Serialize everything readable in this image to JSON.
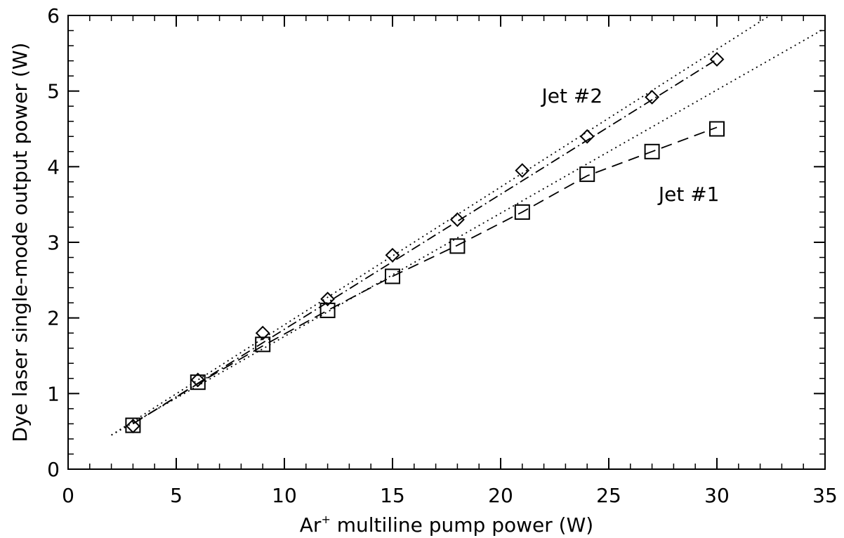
{
  "chart_data": {
    "type": "scatter",
    "xlabel_prefix": "Ar",
    "xlabel_sup": "+",
    "xlabel_rest": " multiline pump power (W)",
    "ylabel": "Dye laser single-mode output power (W)",
    "xlim": [
      0,
      35
    ],
    "ylim": [
      0,
      6
    ],
    "xticks": [
      0,
      5,
      10,
      15,
      20,
      25,
      30,
      35
    ],
    "yticks": [
      0,
      1,
      2,
      3,
      4,
      5,
      6
    ],
    "x_minor_step": 1,
    "y_minor_step": 0.2,
    "grid": false,
    "annotations": [
      {
        "text": "Jet #2",
        "x": 21.9,
        "y": 4.85
      },
      {
        "text": "Jet #1",
        "x": 27.3,
        "y": 3.55
      }
    ],
    "series": [
      {
        "label": "Jet #2",
        "marker": "diamond",
        "x": [
          3,
          6,
          9,
          12,
          15,
          18,
          21,
          24,
          27,
          30
        ],
        "y": [
          0.57,
          1.18,
          1.8,
          2.25,
          2.83,
          3.3,
          3.95,
          4.4,
          4.92,
          5.42
        ]
      },
      {
        "label": "Jet #1",
        "marker": "square",
        "x": [
          3,
          6,
          9,
          12,
          15,
          18,
          21,
          24,
          27,
          30
        ],
        "y": [
          0.58,
          1.15,
          1.65,
          2.1,
          2.55,
          2.95,
          3.4,
          3.9,
          4.2,
          4.5
        ]
      }
    ],
    "fit_lines": [
      {
        "label": "Jet #2 linear fit",
        "style": "dotted",
        "x": [
          2,
          33
        ],
        "y": [
          0.45,
          6.1
        ]
      },
      {
        "label": "Jet #1 linear fit",
        "style": "dotted",
        "x": [
          2,
          35
        ],
        "y": [
          0.45,
          5.83
        ]
      },
      {
        "label": "Jet #2 trend",
        "style": "dash-dot",
        "x": [
          3,
          30
        ],
        "y": [
          0.6,
          5.42
        ]
      },
      {
        "label": "Jet #1 trend",
        "style": "dashed",
        "x": [
          3,
          6,
          9,
          12,
          15,
          18,
          21,
          24,
          27,
          30
        ],
        "y": [
          0.6,
          1.13,
          1.63,
          2.1,
          2.55,
          2.96,
          3.4,
          3.88,
          4.2,
          4.52
        ]
      }
    ]
  }
}
